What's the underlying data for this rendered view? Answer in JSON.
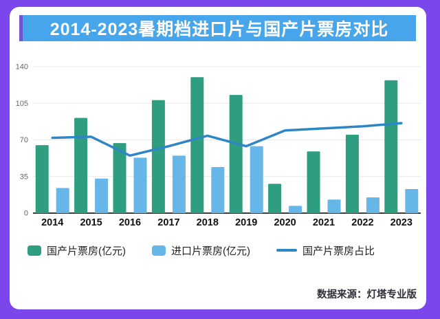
{
  "title": "2014-2023暑期档进口片与国产片票房对比",
  "footer": {
    "source_label": "数据来源：灯塔专业版"
  },
  "colors": {
    "frame": "#7B46EC",
    "banner_bg": "#47A6EB",
    "banner_accent": "#7254D2",
    "title_text": "#FFFFFF",
    "domestic_bar": "#2F9E80",
    "imported_bar": "#66B6E8",
    "share_line": "#2E86C4",
    "grid": "#E8E8E8",
    "axis_line": "#3C3C3C",
    "axis_tick_text": "#666666",
    "x_label_text": "#111111",
    "legend_text": "#222222",
    "footer_text": "#2F2F3A"
  },
  "chart_data": {
    "type": "bar",
    "title": "2014-2023暑期档进口片与国产片票房对比",
    "categories": [
      "2014",
      "2015",
      "2016",
      "2017",
      "2018",
      "2019",
      "2020",
      "2021",
      "2022",
      "2023"
    ],
    "series": [
      {
        "name": "国产片票房(亿元)",
        "type": "bar",
        "values": [
          65,
          91,
          67,
          108,
          130,
          113,
          28,
          59,
          75,
          127
        ]
      },
      {
        "name": "进口片票房(亿元)",
        "type": "bar",
        "values": [
          24,
          33,
          53,
          55,
          44,
          64,
          7,
          13,
          15,
          23
        ]
      },
      {
        "name": "国产片票房占比",
        "type": "line",
        "values": [
          72,
          73,
          55,
          64,
          74,
          64,
          79,
          81,
          83,
          86
        ]
      }
    ],
    "xlabel": "",
    "ylabel": "",
    "y_axis": {
      "ticks": [
        0,
        35,
        70,
        105,
        140
      ],
      "min": 0,
      "max": 140
    },
    "grid": true,
    "legend_position": "bottom"
  }
}
